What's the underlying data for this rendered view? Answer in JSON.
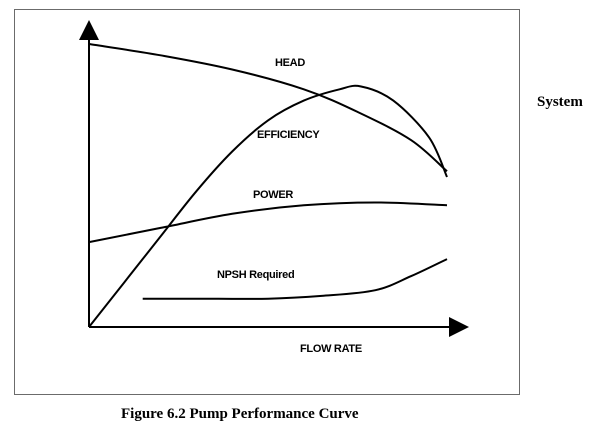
{
  "side_label": "System",
  "caption": "Figure 6.2 Pump Performance Curve",
  "chart_data": {
    "type": "line",
    "xlabel": "FLOW RATE",
    "ylabel": "",
    "xlim": [
      0,
      100
    ],
    "ylim": [
      0,
      100
    ],
    "grid": false,
    "series": [
      {
        "name": "HEAD",
        "x": [
          0,
          20,
          40,
          60,
          75,
          90,
          100
        ],
        "y": [
          100,
          96,
          91,
          84,
          76,
          66,
          55
        ]
      },
      {
        "name": "EFFICIENCY",
        "x": [
          0,
          10,
          20,
          30,
          40,
          50,
          60,
          70,
          76,
          85,
          95,
          100
        ],
        "y": [
          0,
          16,
          32,
          48,
          62,
          73,
          80,
          84,
          85,
          80,
          67,
          53
        ]
      },
      {
        "name": "POWER",
        "x": [
          0,
          20,
          40,
          60,
          80,
          100
        ],
        "y": [
          30,
          35,
          40,
          43,
          44,
          43
        ]
      },
      {
        "name": "NPSH Required",
        "x": [
          15,
          30,
          50,
          65,
          80,
          90,
          100
        ],
        "y": [
          10,
          10,
          10,
          11,
          13,
          18,
          24
        ]
      }
    ]
  }
}
